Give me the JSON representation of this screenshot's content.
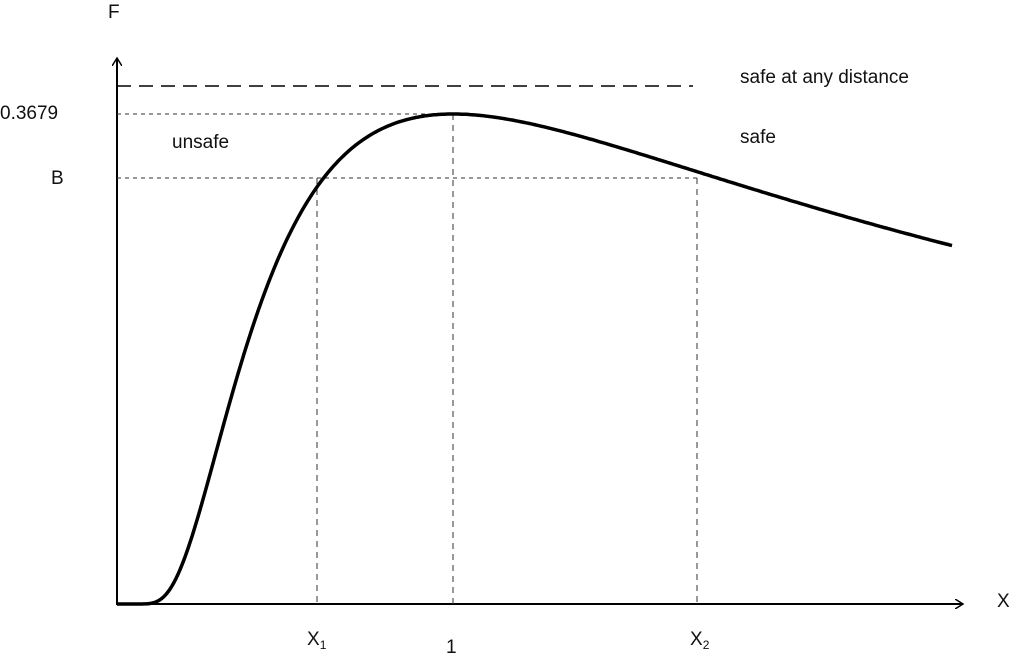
{
  "axes": {
    "y_label": "F",
    "x_label": "X"
  },
  "y_ticks": {
    "peak": "0.3679",
    "b": "B"
  },
  "x_ticks": {
    "x1": {
      "main": "X",
      "sub": "1"
    },
    "one": "1",
    "x2": {
      "main": "X",
      "sub": "2"
    }
  },
  "regions": {
    "unsafe": "unsafe",
    "safe": "safe",
    "safe_any": "safe at any distance"
  },
  "colors": {
    "line": "#000000",
    "guide": "#333333"
  }
}
